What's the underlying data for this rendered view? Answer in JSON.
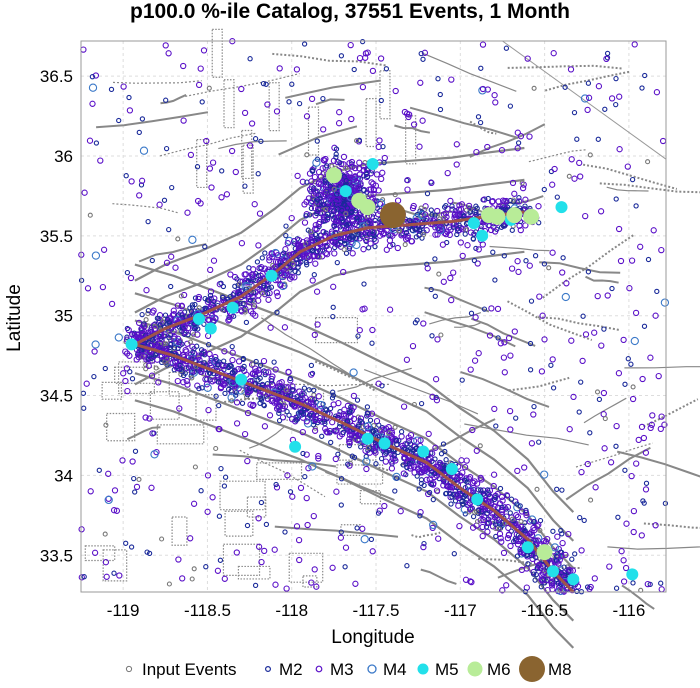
{
  "chart_data": {
    "type": "scatter",
    "title": "p100.0 %-ile Catalog, 37551 Events, 1 Month",
    "xlabel": "Longitude",
    "ylabel": "Latitude",
    "xlim": [
      -119.25,
      -115.78
    ],
    "ylim": [
      33.27,
      36.72
    ],
    "x_ticks": [
      -119,
      -118.5,
      -118,
      -117.5,
      -117,
      -116.5,
      -116
    ],
    "x_tick_labels": [
      "-119",
      "-118.5",
      "-118",
      "-117.5",
      "-117",
      "-116.5",
      "-116"
    ],
    "y_ticks": [
      33.5,
      34,
      34.5,
      35,
      35.5,
      36,
      36.5
    ],
    "y_tick_labels": [
      "33.5",
      "34",
      "34.5",
      "35",
      "35.5",
      "36",
      "36.5"
    ],
    "grid": true,
    "legend_position": "bottom",
    "legend": [
      "Input Events",
      "M2",
      "M3",
      "M4",
      "M5",
      "M6",
      "M8"
    ],
    "fault_trace": [
      [
        -118.93,
        34.82
      ],
      [
        -118.75,
        34.92
      ],
      [
        -118.55,
        35.0
      ],
      [
        -118.3,
        35.12
      ],
      [
        -118.1,
        35.27
      ],
      [
        -117.95,
        35.4
      ],
      [
        -117.75,
        35.5
      ],
      [
        -117.55,
        35.55
      ],
      [
        -117.3,
        35.57
      ],
      [
        -117.05,
        35.59
      ],
      [
        -116.85,
        35.62
      ],
      [
        -116.62,
        35.65
      ]
    ],
    "fault_trace_south": [
      [
        -118.93,
        34.82
      ],
      [
        -118.7,
        34.75
      ],
      [
        -118.45,
        34.65
      ],
      [
        -118.2,
        34.55
      ],
      [
        -117.95,
        34.45
      ],
      [
        -117.7,
        34.33
      ],
      [
        -117.45,
        34.2
      ],
      [
        -117.2,
        34.08
      ],
      [
        -117.0,
        33.92
      ],
      [
        -116.8,
        33.78
      ],
      [
        -116.6,
        33.6
      ],
      [
        -116.45,
        33.4
      ],
      [
        -116.33,
        33.27
      ]
    ],
    "large_events": [
      {
        "mag": "M8",
        "lon": -117.4,
        "lat": 35.63
      },
      {
        "mag": "M6",
        "lon": -117.75,
        "lat": 35.88
      },
      {
        "mag": "M6",
        "lon": -117.6,
        "lat": 35.72
      },
      {
        "mag": "M6",
        "lon": -117.55,
        "lat": 35.68
      },
      {
        "mag": "M6",
        "lon": -116.83,
        "lat": 35.63
      },
      {
        "mag": "M6",
        "lon": -116.78,
        "lat": 35.62
      },
      {
        "mag": "M6",
        "lon": -116.68,
        "lat": 35.63
      },
      {
        "mag": "M6",
        "lon": -116.58,
        "lat": 35.62
      },
      {
        "mag": "M6",
        "lon": -116.5,
        "lat": 33.52
      },
      {
        "mag": "M5",
        "lon": -117.52,
        "lat": 35.95
      },
      {
        "mag": "M5",
        "lon": -117.68,
        "lat": 35.78
      },
      {
        "mag": "M5",
        "lon": -116.92,
        "lat": 35.58
      },
      {
        "mag": "M5",
        "lon": -116.87,
        "lat": 35.5
      },
      {
        "mag": "M5",
        "lon": -116.7,
        "lat": 35.6
      },
      {
        "mag": "M5",
        "lon": -116.4,
        "lat": 35.68
      },
      {
        "mag": "M5",
        "lon": -118.12,
        "lat": 35.25
      },
      {
        "mag": "M5",
        "lon": -118.35,
        "lat": 35.05
      },
      {
        "mag": "M5",
        "lon": -118.55,
        "lat": 34.98
      },
      {
        "mag": "M5",
        "lon": -118.48,
        "lat": 34.92
      },
      {
        "mag": "M5",
        "lon": -118.95,
        "lat": 34.82
      },
      {
        "mag": "M5",
        "lon": -118.3,
        "lat": 34.6
      },
      {
        "mag": "M5",
        "lon": -117.55,
        "lat": 34.23
      },
      {
        "mag": "M5",
        "lon": -117.45,
        "lat": 34.2
      },
      {
        "mag": "M5",
        "lon": -117.22,
        "lat": 34.15
      },
      {
        "mag": "M5",
        "lon": -117.05,
        "lat": 34.04
      },
      {
        "mag": "M5",
        "lon": -116.9,
        "lat": 33.85
      },
      {
        "mag": "M5",
        "lon": -116.6,
        "lat": 33.55
      },
      {
        "mag": "M5",
        "lon": -116.45,
        "lat": 33.4
      },
      {
        "mag": "M5",
        "lon": -116.33,
        "lat": 33.35
      },
      {
        "mag": "M5",
        "lon": -115.98,
        "lat": 33.38
      },
      {
        "mag": "M5",
        "lon": -117.98,
        "lat": 34.18
      }
    ]
  },
  "colors": {
    "input": "#777777",
    "m2": "#1a2a9a",
    "m3": "#5a10c8",
    "m4": "#3a78c8",
    "m5": "#22e0ea",
    "m6": "#b8ec98",
    "m8": "#8a6430",
    "fault": "#888888",
    "trace": "#a0524a"
  }
}
